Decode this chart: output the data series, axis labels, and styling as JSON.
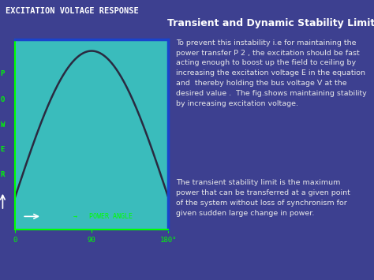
{
  "bg_color": "#3d4090",
  "title_box_color": "#2b2d7a",
  "title_text": "EXCITATION VOLTAGE RESPONSE",
  "title_color": "#ffffff",
  "heading_text": "Transient and Dynamic Stability Limit.",
  "heading_color": "#ffffff",
  "plot_bg_color": "#3abcbc",
  "plot_border_color": "#1a44cc",
  "curve_color": "#2a2a40",
  "axis_color": "#00ff00",
  "ylabel_letters": [
    "P",
    "O",
    "W",
    "E",
    "R"
  ],
  "xlabel_text": "→   POWER ANGLE",
  "x_tick_0": "0",
  "x_tick_90": "90",
  "x_tick_180": "180°",
  "paragraph1": "To prevent this instability i.e for maintaining the\npower transfer P 2 , the excitation should be fast\nacting enough to boost up the field to ceiling by\nincreasing the excitation voltage E in the equation\nand  thereby holding the bus voltage V at the\ndesired value .  The fig.shows maintaining stability\nby increasing excitation voltage.",
  "paragraph2": "The transient stability limit is the maximum\npower that can be transferred at a given point\nof the system without loss of synchronism for\ngiven sudden large change in power.",
  "text_color": "#e8e8e8",
  "para_fontsize": 6.8,
  "heading_fontsize": 9.0,
  "title_fontsize": 7.5
}
